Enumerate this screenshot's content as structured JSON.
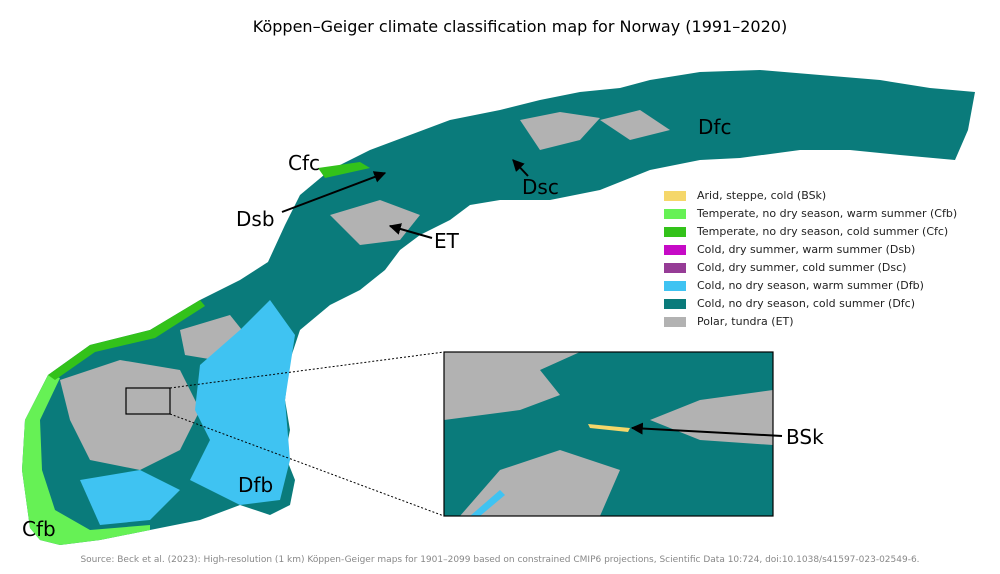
{
  "title": "Köppen–Geiger climate classification map for Norway (1991–2020)",
  "legend": [
    {
      "label": "Arid, steppe, cold (BSk)",
      "color": "#f5d76a"
    },
    {
      "label": "Temperate, no dry season, warm summer (Cfb)",
      "color": "#66f155"
    },
    {
      "label": "Temperate, no dry season, cold summer (Cfc)",
      "color": "#33c21a"
    },
    {
      "label": "Cold, dry summer, warm summer (Dsb)",
      "color": "#c60ac6"
    },
    {
      "label": "Cold, dry summer, cold summer (Dsc)",
      "color": "#963c96"
    },
    {
      "label": "Cold, no dry season, warm summer (Dfb)",
      "color": "#3fc3f2"
    },
    {
      "label": "Cold, no dry season, cold summer (Dfc)",
      "color": "#0a7b7b"
    },
    {
      "label": "Polar, tundra (ET)",
      "color": "#b2b2b2"
    }
  ],
  "annotations": [
    "Dfc",
    "Cfc",
    "Dsb",
    "Dsc",
    "ET",
    "Dfb",
    "Cfb",
    "BSk"
  ],
  "source": "Source: Beck et al. (2023): High-resolution (1 km) Köppen-Geiger maps for 1901–2099 based on constrained CMIP6 projections, Scientific Data 10:724, doi:10.1038/s41597-023-02549-6."
}
